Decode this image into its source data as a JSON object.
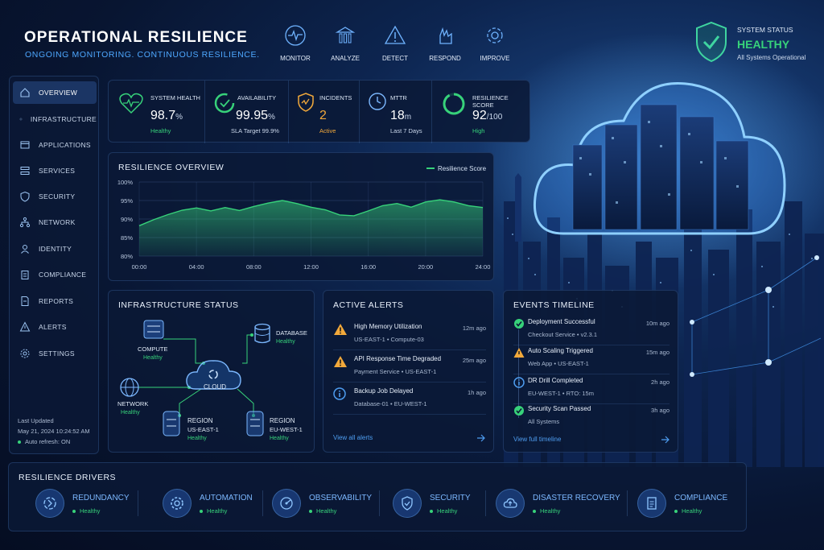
{
  "header": {
    "title": "OPERATIONAL RESILIENCE",
    "subtitle": "ONGOING MONITORING. CONTINUOUS RESILIENCE."
  },
  "topnav": [
    {
      "label": "MONITOR",
      "icon": "pulse-icon"
    },
    {
      "label": "ANALYZE",
      "icon": "bar-chart-icon"
    },
    {
      "label": "DETECT",
      "icon": "warning-icon"
    },
    {
      "label": "RESPOND",
      "icon": "hand-icon"
    },
    {
      "label": "IMPROVE",
      "icon": "gear-icon"
    }
  ],
  "system_status": {
    "label": "SYSTEM STATUS",
    "value": "HEALTHY",
    "detail": "All Systems Operational"
  },
  "sidebar": {
    "items": [
      {
        "label": "OVERVIEW",
        "icon": "home-icon",
        "active": true
      },
      {
        "label": "INFRASTRUCTURE",
        "icon": "gear-icon"
      },
      {
        "label": "APPLICATIONS",
        "icon": "window-icon"
      },
      {
        "label": "SERVICES",
        "icon": "list-icon"
      },
      {
        "label": "SECURITY",
        "icon": "shield-icon"
      },
      {
        "label": "NETWORK",
        "icon": "network-icon"
      },
      {
        "label": "IDENTITY",
        "icon": "user-icon"
      },
      {
        "label": "COMPLIANCE",
        "icon": "clipboard-icon"
      },
      {
        "label": "REPORTS",
        "icon": "document-icon"
      },
      {
        "label": "ALERTS",
        "icon": "warning-icon"
      },
      {
        "label": "SETTINGS",
        "icon": "gear-icon"
      }
    ],
    "last_updated_label": "Last Updated",
    "last_updated": "May 21, 2024 10:24:52 AM",
    "auto_refresh": "Auto refresh: ON"
  },
  "kpis": [
    {
      "label": "SYSTEM HEALTH",
      "value": "98.7",
      "unit": "%",
      "sub": "Healthy",
      "icon": "heartbeat-icon"
    },
    {
      "label": "AVAILABILITY",
      "value": "99.95",
      "unit": "%",
      "sub": "SLA Target 99.9%",
      "icon": "availability-ring-icon"
    },
    {
      "label": "INCIDENTS",
      "value": "2",
      "unit": "",
      "sub": "Active",
      "icon": "shield-alert-icon"
    },
    {
      "label": "MTTR",
      "value": "18",
      "unit": "m",
      "sub": "Last 7 Days",
      "icon": "clock-icon"
    },
    {
      "label": "RESILIENCE SCORE",
      "value": "92",
      "unit": "/100",
      "sub": "High",
      "icon": "score-ring-icon",
      "score_fraction": 0.92
    }
  ],
  "overview": {
    "title": "RESILIENCE OVERVIEW"
  },
  "chart_data": {
    "type": "area",
    "legend": "Resilience Score",
    "legend_position": "top-right",
    "x_ticks": [
      "00:00",
      "04:00",
      "08:00",
      "12:00",
      "16:00",
      "20:00",
      "24:00"
    ],
    "y_ticks": [
      "100%",
      "95%",
      "90%",
      "85%",
      "80%"
    ],
    "ylim": [
      80,
      100
    ],
    "x": [
      0,
      1,
      2,
      3,
      4,
      5,
      6,
      7,
      8,
      9,
      10,
      11,
      12,
      13,
      14,
      15,
      16,
      17,
      18,
      19,
      20,
      21,
      22,
      23,
      24
    ],
    "values": [
      88.2,
      89.8,
      91.2,
      92.4,
      93.0,
      92.2,
      93.1,
      92.3,
      93.4,
      94.3,
      95.0,
      94.2,
      93.2,
      92.5,
      91.1,
      90.9,
      92.2,
      93.6,
      94.2,
      93.2,
      94.6,
      95.2,
      94.6,
      93.6,
      93.1
    ],
    "grid": true,
    "color": "#37d27a"
  },
  "infrastructure": {
    "title": "INFRASTRUCTURE STATUS",
    "center": "CLOUD",
    "nodes": [
      {
        "label": "COMPUTE",
        "status": "Healthy"
      },
      {
        "label": "DATABASE",
        "status": "Healthy"
      },
      {
        "label": "NETWORK",
        "status": "Healthy"
      },
      {
        "label": "REGION",
        "sub": "US-EAST-1",
        "status": "Healthy"
      },
      {
        "label": "REGION",
        "sub": "EU-WEST-1",
        "status": "Healthy"
      }
    ]
  },
  "alerts": {
    "title": "ACTIVE ALERTS",
    "items": [
      {
        "title": "High Memory Utilization",
        "detail": "US-EAST-1  •  Compute-03",
        "time": "12m ago",
        "icon": "warning-icon"
      },
      {
        "title": "API Response Time Degraded",
        "detail": "Payment Service  •  US-EAST-1",
        "time": "25m ago",
        "icon": "warning-icon"
      },
      {
        "title": "Backup Job Delayed",
        "detail": "Database-01  •  EU-WEST-1",
        "time": "1h ago",
        "icon": "info-icon"
      }
    ],
    "view_all": "View all alerts"
  },
  "events": {
    "title": "EVENTS TIMELINE",
    "items": [
      {
        "title": "Deployment Successful",
        "detail": "Checkout Service  •  v2.3.1",
        "time": "10m ago",
        "icon": "check-icon"
      },
      {
        "title": "Auto Scaling Triggered",
        "detail": "Web App  •  US-EAST-1",
        "time": "15m ago",
        "icon": "warning-icon"
      },
      {
        "title": "DR Drill Completed",
        "detail": "EU-WEST-1  •  RTO: 15m",
        "time": "2h ago",
        "icon": "info-icon"
      },
      {
        "title": "Security Scan Passed",
        "detail": "All Systems",
        "time": "3h ago",
        "icon": "check-icon"
      }
    ],
    "view_all": "View full timeline"
  },
  "drivers": {
    "title": "RESILIENCE DRIVERS",
    "items": [
      {
        "name": "REDUNDANCY",
        "status": "Healthy",
        "icon": "redundancy-icon"
      },
      {
        "name": "AUTOMATION",
        "status": "Healthy",
        "icon": "gear-icon"
      },
      {
        "name": "OBSERVABILITY",
        "status": "Healthy",
        "icon": "radar-icon"
      },
      {
        "name": "SECURITY",
        "status": "Healthy",
        "icon": "shield-icon"
      },
      {
        "name": "DISASTER RECOVERY",
        "status": "Healthy",
        "icon": "cloud-upload-icon"
      },
      {
        "name": "COMPLIANCE",
        "status": "Healthy",
        "icon": "clipboard-icon"
      }
    ]
  },
  "colors": {
    "accent": "#4ea8ff",
    "healthy": "#37d27a",
    "warning": "#f2a93b",
    "background": "#081531"
  }
}
